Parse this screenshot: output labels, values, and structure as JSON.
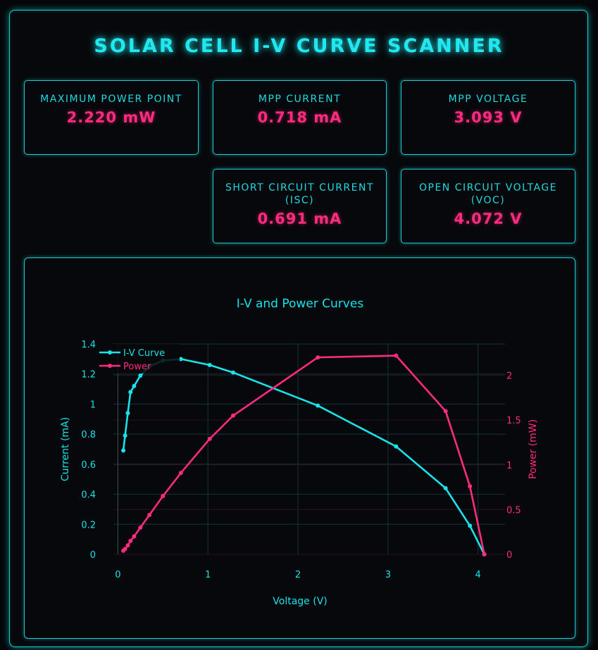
{
  "header": {
    "title": "SOLAR CELL I-V CURVE SCANNER"
  },
  "metrics": {
    "mpp": {
      "label": "MAXIMUM POWER POINT",
      "value": "2.220 mW"
    },
    "mpp_current": {
      "label": "MPP CURRENT",
      "value": "0.718 mA"
    },
    "mpp_voltage": {
      "label": "MPP VOLTAGE",
      "value": "3.093 V"
    },
    "isc": {
      "label": "SHORT CIRCUIT CURRENT (ISC)",
      "value": "0.691 mA"
    },
    "voc": {
      "label": "OPEN CIRCUIT VOLTAGE (VOC)",
      "value": "4.072 V"
    }
  },
  "colors": {
    "accent": "#19e3ea",
    "power": "#ff2b7f",
    "background": "#050608"
  },
  "chart_data": {
    "type": "line",
    "title": "I-V and Power Curves",
    "xlabel": "Voltage (V)",
    "ylabel": "Current (mA)",
    "y2label": "Power (mW)",
    "xlim": [
      -0.05,
      4.3
    ],
    "ylim": [
      0,
      1.4
    ],
    "y2lim": [
      0,
      2.35
    ],
    "xticks": [
      0,
      1,
      2,
      3,
      4
    ],
    "yticks": [
      0,
      0.2,
      0.4,
      0.6,
      0.8,
      1,
      1.2,
      1.4
    ],
    "y2ticks": [
      0,
      0.5,
      1,
      1.5,
      2
    ],
    "legend": "top-left",
    "grid": true,
    "series": [
      {
        "name": "I-V Curve",
        "axis": "y",
        "color": "#19e3ea",
        "x": [
          0.06,
          0.08,
          0.11,
          0.14,
          0.18,
          0.25,
          0.35,
          0.5,
          0.7,
          1.02,
          1.28,
          2.22,
          3.09,
          3.64,
          3.91,
          4.07
        ],
        "y": [
          0.691,
          0.79,
          0.94,
          1.08,
          1.12,
          1.19,
          1.25,
          1.29,
          1.3,
          1.26,
          1.21,
          0.99,
          0.718,
          0.44,
          0.19,
          0.0
        ]
      },
      {
        "name": "Power",
        "axis": "y2",
        "color": "#ff2b7f",
        "x": [
          0.06,
          0.08,
          0.11,
          0.14,
          0.18,
          0.25,
          0.35,
          0.5,
          0.7,
          1.02,
          1.28,
          2.22,
          3.09,
          3.64,
          3.91,
          4.07
        ],
        "y": [
          0.04,
          0.06,
          0.1,
          0.15,
          0.2,
          0.3,
          0.44,
          0.65,
          0.91,
          1.29,
          1.55,
          2.2,
          2.22,
          1.6,
          0.76,
          0.0
        ]
      }
    ]
  }
}
